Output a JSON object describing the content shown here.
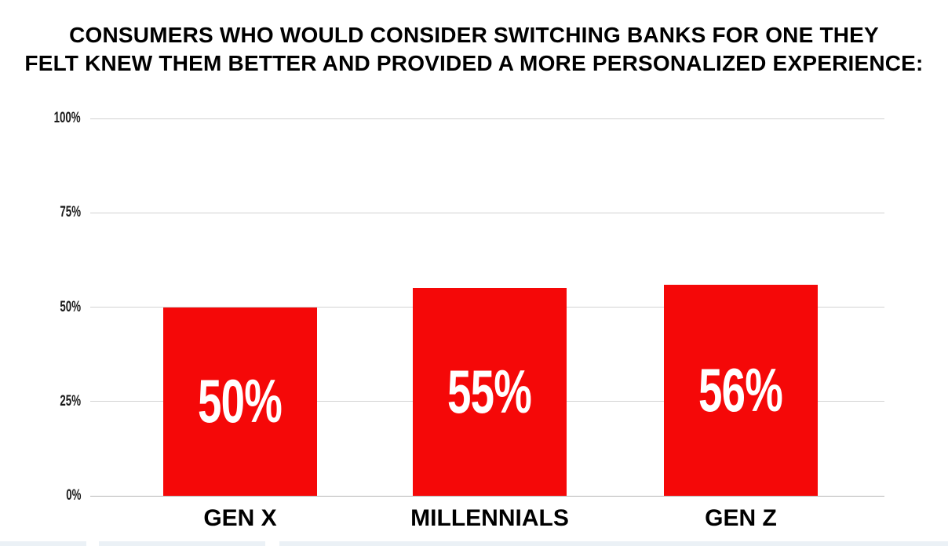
{
  "title": {
    "lines": [
      "CONSUMERS WHO WOULD CONSIDER SWITCHING BANKS FOR ONE THEY",
      "FELT KNEW THEM BETTER AND PROVIDED A MORE PERSONALIZED EXPERIENCE:"
    ],
    "full": "CONSUMERS WHO WOULD CONSIDER SWITCHING BANKS FOR ONE THEY FELT KNEW THEM BETTER AND PROVIDED A MORE PERSONALIZED EXPERIENCE:"
  },
  "chart_data": {
    "type": "bar",
    "categories": [
      "GEN X",
      "MILLENNIALS",
      "GEN Z"
    ],
    "values": [
      50,
      55,
      56
    ],
    "value_labels": [
      "50%",
      "55%",
      "56%"
    ],
    "yticks": {
      "values": [
        0,
        25,
        50,
        75,
        100
      ],
      "labels": [
        "0%",
        "25%",
        "50%",
        "75%",
        "100%"
      ]
    },
    "ylim": [
      0,
      100
    ],
    "xlabel": "",
    "ylabel": "",
    "grid": true,
    "legend": "none",
    "bar_color": "#F50808",
    "value_label_color": "#FFFFFF"
  },
  "colors": {
    "background": "#FFFFFF",
    "bar": "#F50808",
    "grid": "#D2D2D2",
    "baseline": "#B5B5B5",
    "axis_text": "#1A1A1A",
    "title_text": "#000000",
    "value_label": "#FFFFFF",
    "bottom_strip": "#EBF1F6"
  }
}
